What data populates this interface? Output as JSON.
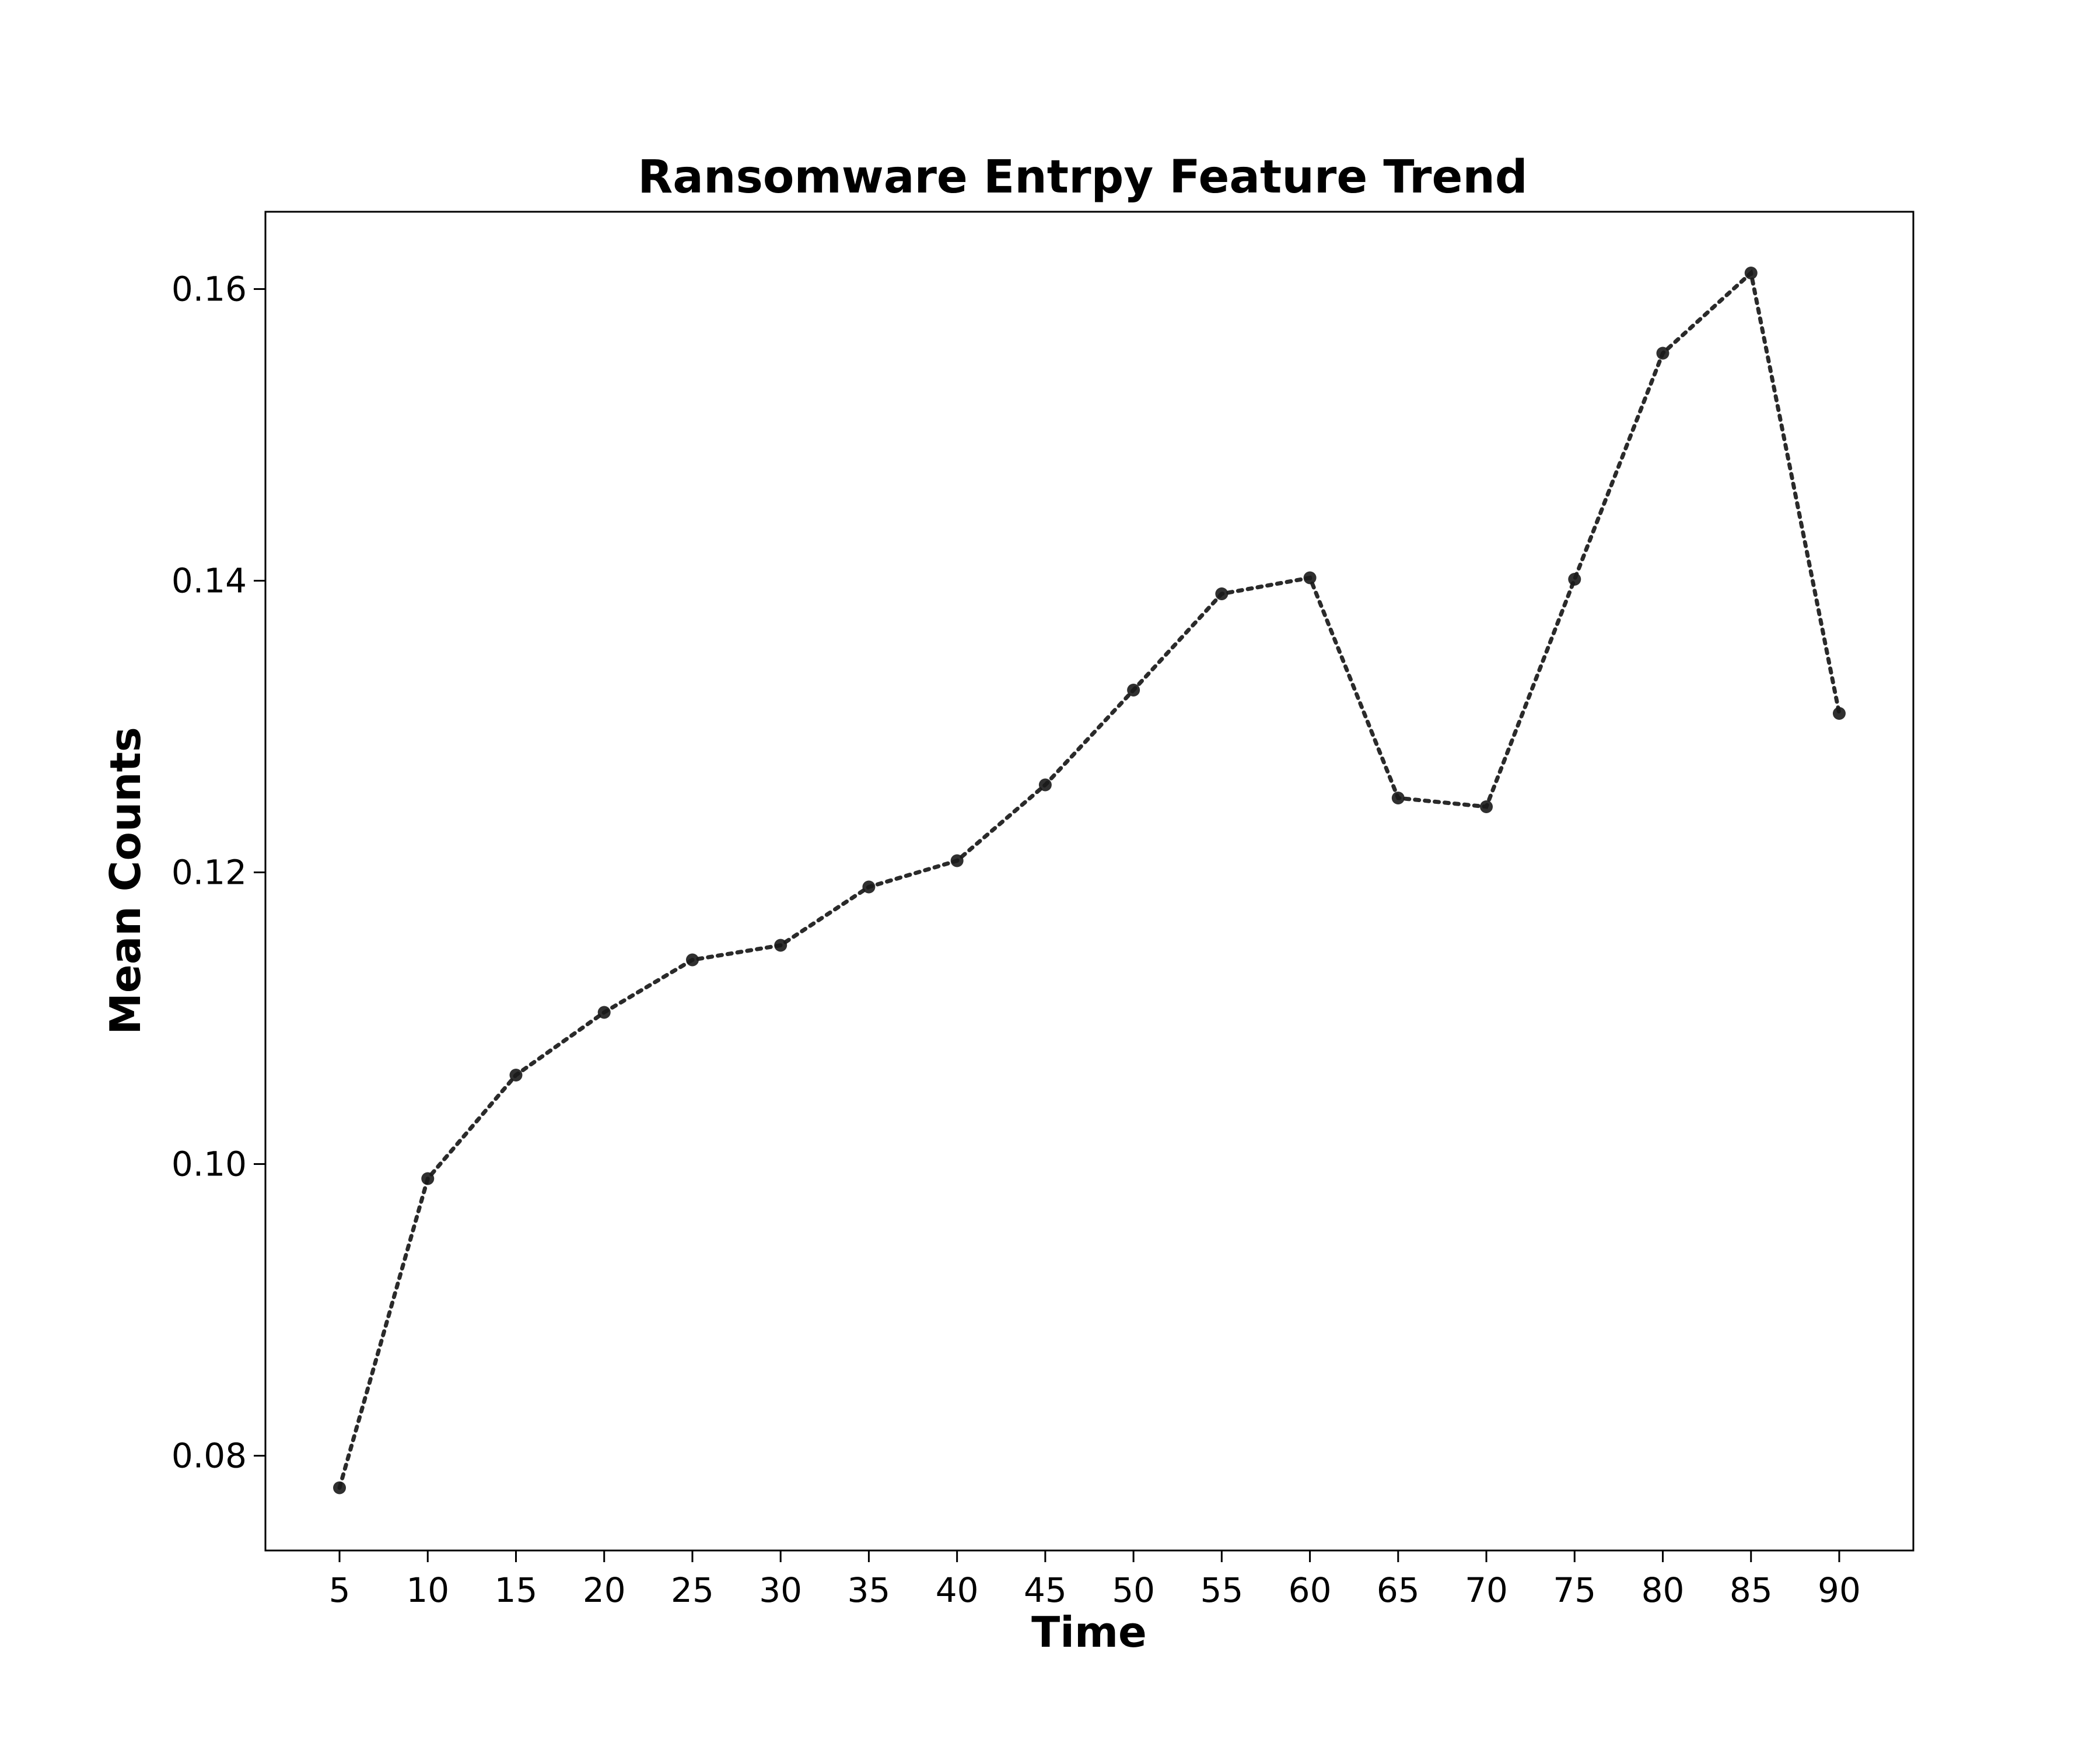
{
  "chart_data": {
    "type": "line",
    "title": "Ransomware Entrpy Feature Trend",
    "xlabel": "Time",
    "ylabel": "Mean Counts",
    "x_ticks": [
      "5",
      "10",
      "15",
      "20",
      "25",
      "30",
      "35",
      "40",
      "45",
      "50",
      "55",
      "60",
      "65",
      "70",
      "75",
      "80",
      "85",
      "90"
    ],
    "y_ticks": [
      "0.08",
      "0.10",
      "0.12",
      "0.14",
      "0.16"
    ],
    "xlim": [
      0.8,
      94.2
    ],
    "ylim": [
      0.0735,
      0.1653
    ],
    "grid": false,
    "series": [
      {
        "x": [
          5,
          10,
          15,
          20,
          25,
          30,
          35,
          40,
          45,
          50,
          55,
          60,
          65,
          70,
          75,
          80,
          85,
          90
        ],
        "y": [
          0.0778,
          0.099,
          0.1061,
          0.1104,
          0.114,
          0.115,
          0.119,
          0.1208,
          0.126,
          0.1325,
          0.1391,
          0.1402,
          0.1251,
          0.1245,
          0.1401,
          0.1556,
          0.1611,
          0.1309
        ],
        "color": "#1a1a1a",
        "line_style": "dotted",
        "marker": "circle"
      }
    ]
  }
}
